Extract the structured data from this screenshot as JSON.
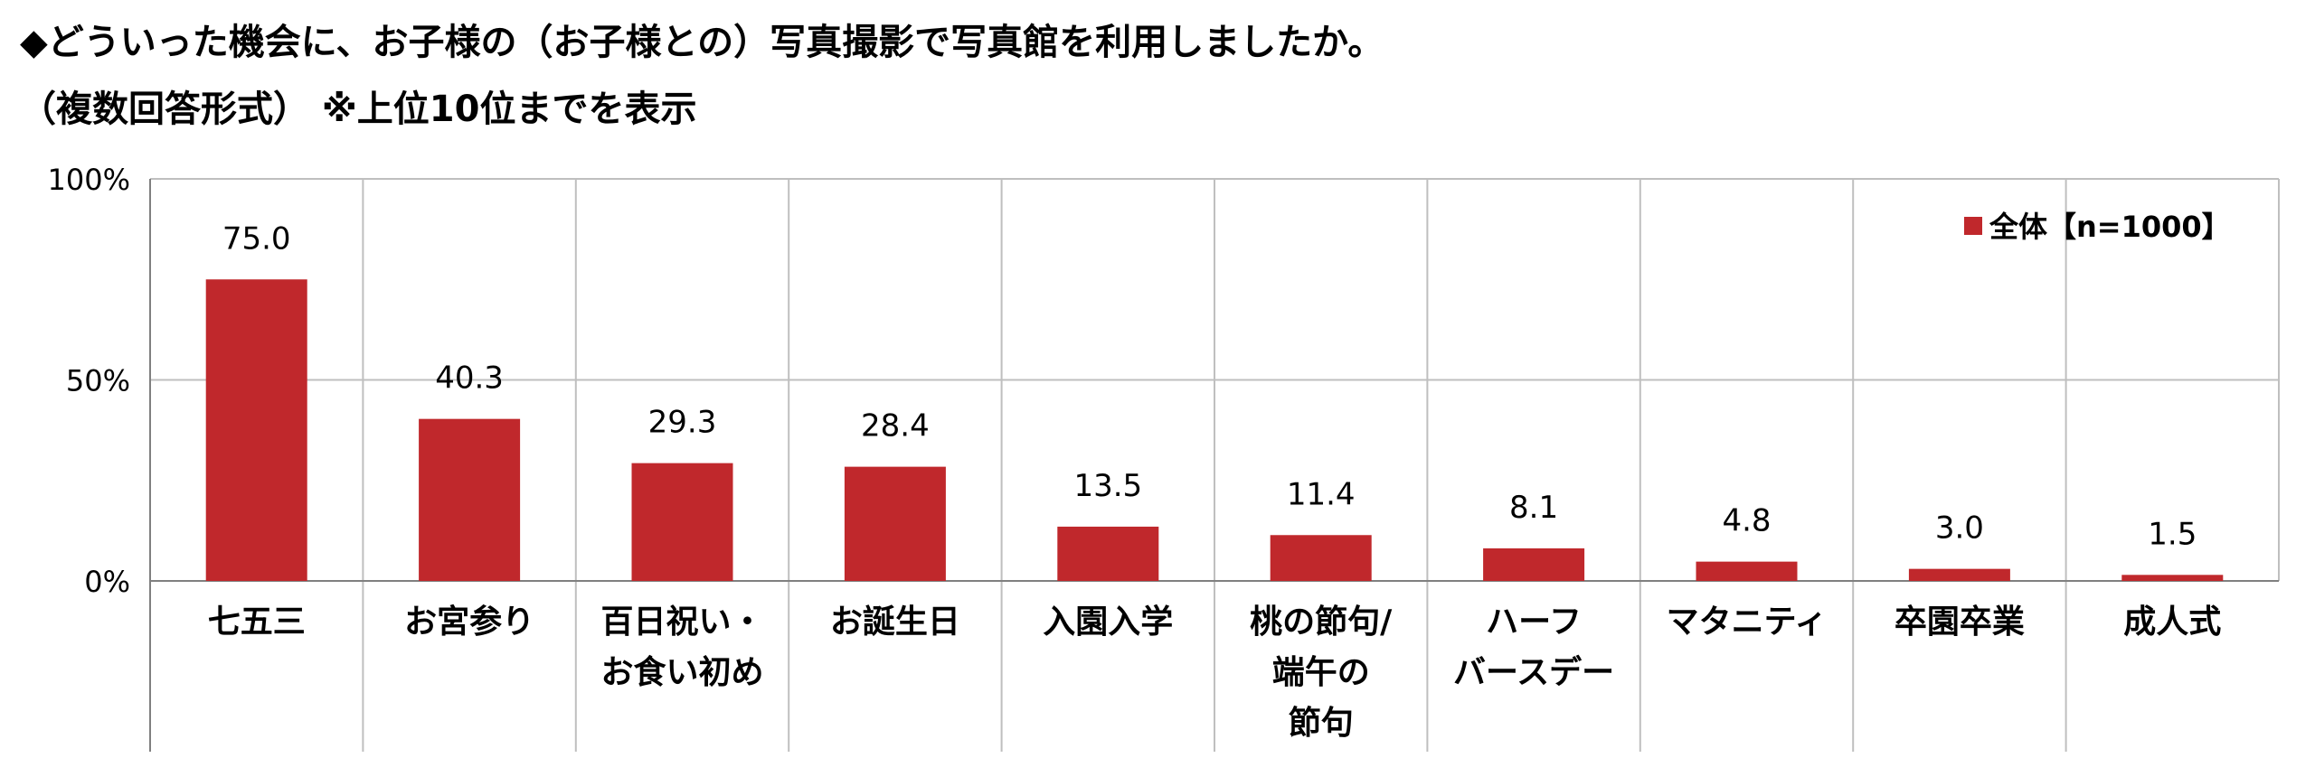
{
  "title_line1": "◆どういった機会に、お子様の（お子様との）写真撮影で写真館を利用しましたか。",
  "title_line2": "（複数回答形式） ※上位10位までを表示",
  "chart_data": {
    "type": "bar",
    "categories": [
      [
        "七五三"
      ],
      [
        "お宮参り"
      ],
      [
        "百日祝い・",
        "お食い初め"
      ],
      [
        "お誕生日"
      ],
      [
        "入園入学"
      ],
      [
        "桃の節句/",
        "端午の",
        "節句"
      ],
      [
        "ハーフ",
        "バースデー"
      ],
      [
        "マタニティ"
      ],
      [
        "卒園卒業"
      ],
      [
        "成人式"
      ]
    ],
    "series": [
      {
        "name": "全体【n=1000】",
        "values": [
          75.0,
          40.3,
          29.3,
          28.4,
          13.5,
          11.4,
          8.1,
          4.8,
          3.0,
          1.5
        ],
        "labels": [
          "75.0",
          "40.3",
          "29.3",
          "28.4",
          "13.5",
          "11.4",
          "8.1",
          "4.8",
          "3.0",
          "1.5"
        ],
        "color": "#c0282c"
      }
    ],
    "yticks": [
      "0%",
      "50%",
      "100%"
    ],
    "ylim": [
      0,
      100
    ],
    "grid": "horizontal at 50%, 100%; vertical separators between categories",
    "legend_position": "top-right"
  }
}
